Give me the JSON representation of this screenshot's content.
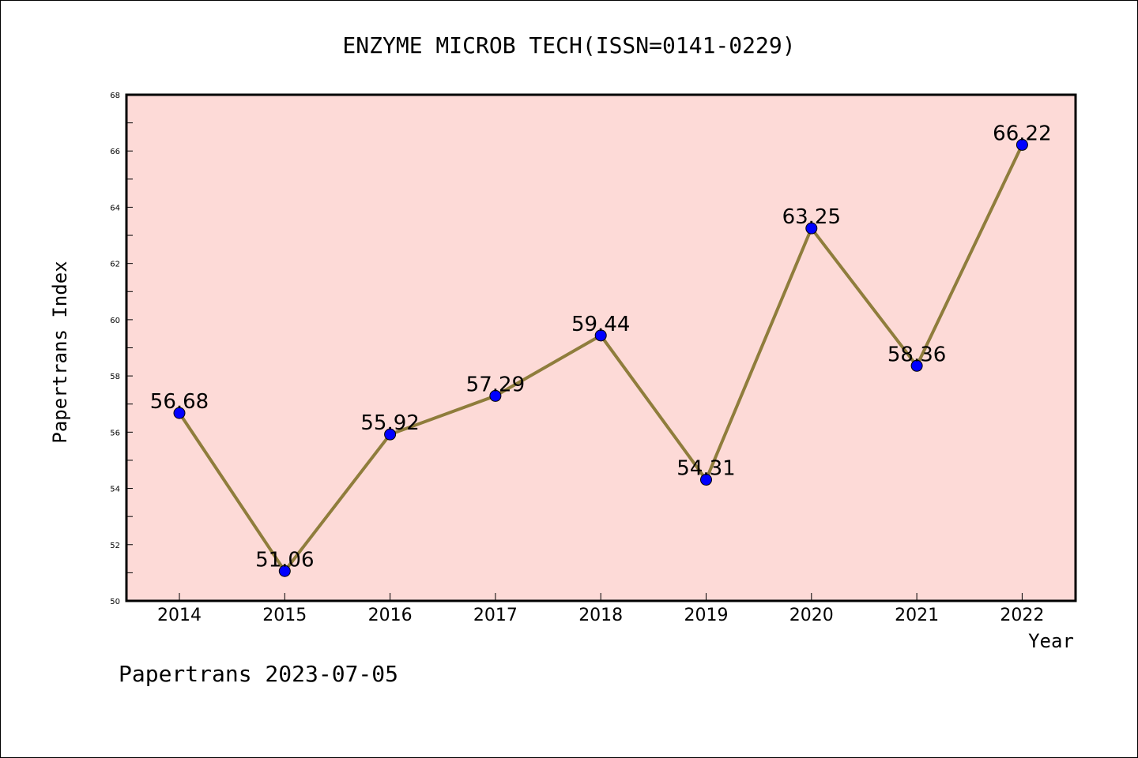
{
  "chart_data": {
    "type": "line",
    "title": "ENZYME MICROB TECH(ISSN=0141-0229)",
    "xlabel": "Year",
    "ylabel": "Papertrans Index",
    "categories": [
      "2014",
      "2015",
      "2016",
      "2017",
      "2018",
      "2019",
      "2020",
      "2021",
      "2022"
    ],
    "values": [
      56.68,
      51.06,
      55.92,
      57.29,
      59.44,
      54.31,
      63.25,
      58.36,
      66.22
    ],
    "data_labels": [
      "56.68",
      "51.06",
      "55.92",
      "57.29",
      "59.44",
      "54.31",
      "63.25",
      "58.36",
      "66.22"
    ],
    "ylim": [
      50,
      68
    ],
    "yticks": [
      "50",
      "52",
      "54",
      "56",
      "58",
      "60",
      "62",
      "64",
      "66",
      "68"
    ],
    "grid": false,
    "line_color": "#8f7d3c",
    "marker_color": "#0000ff",
    "plot_background": "#fddad7"
  },
  "footer": "Papertrans 2023-07-05"
}
